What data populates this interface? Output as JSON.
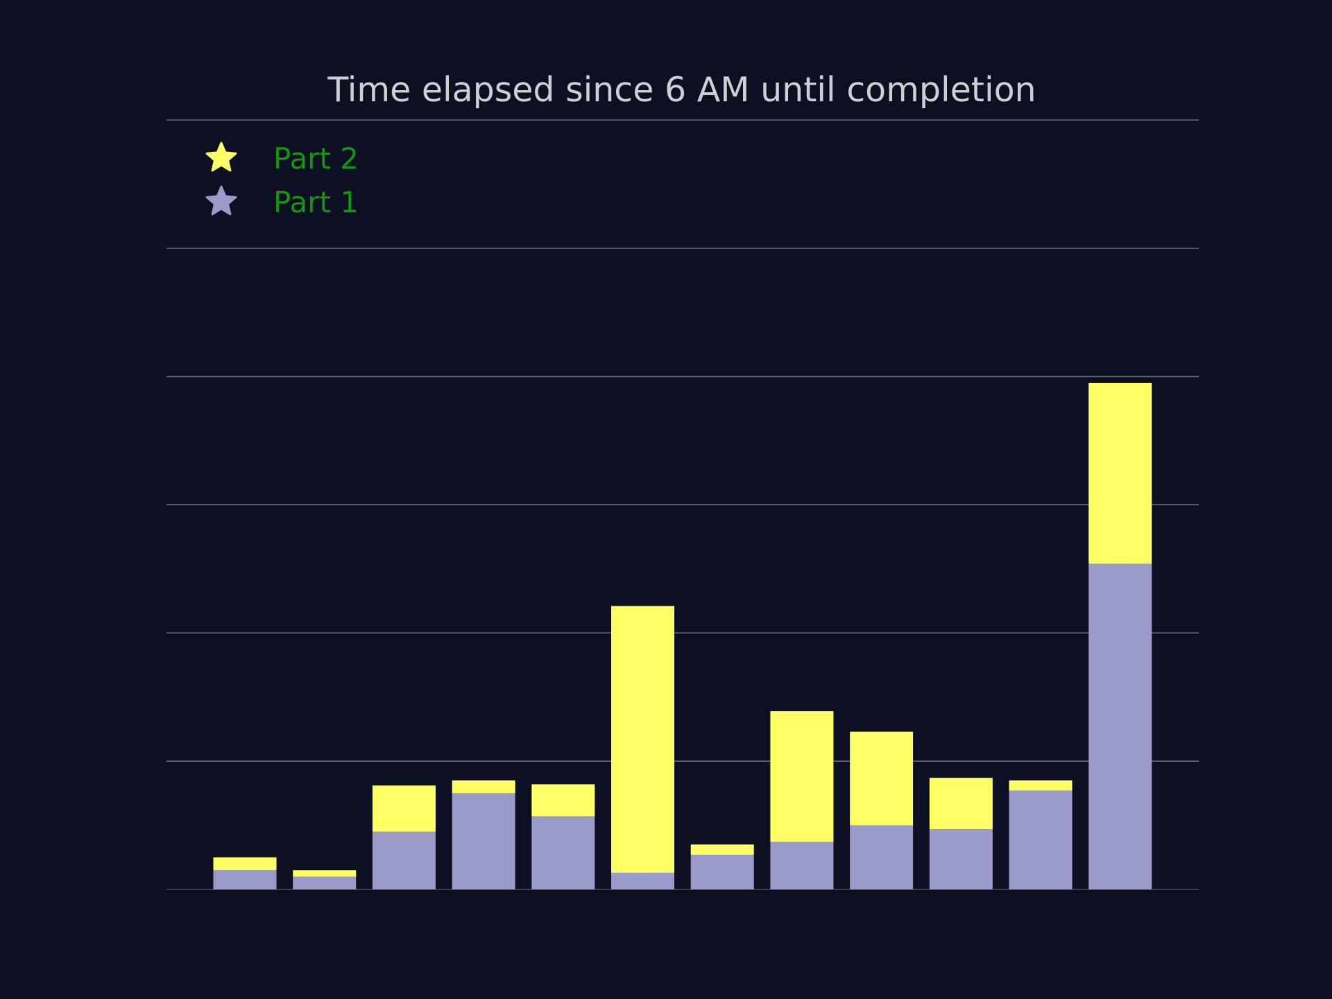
{
  "chart_data": {
    "type": "bar",
    "stacked": true,
    "title": "Time elapsed since 6 AM until completion",
    "xlabel": "",
    "ylabel": "",
    "categories": [
      "",
      "",
      "",
      "",
      "",
      "",
      "",
      "",
      "",
      "",
      "",
      ""
    ],
    "ylim": [
      0,
      6
    ],
    "yticks": [
      0,
      1,
      2,
      3,
      4,
      5,
      6
    ],
    "grid": true,
    "legend": {
      "placement": "top-left",
      "marker": "star-icon"
    },
    "series": [
      {
        "name": "Part 1",
        "color": "#9a9acb",
        "values": [
          0.15,
          0.1,
          0.45,
          0.75,
          0.57,
          0.13,
          0.27,
          0.37,
          0.5,
          0.47,
          0.77,
          2.54
        ]
      },
      {
        "name": "Part 2",
        "color": "#ffff66",
        "values": [
          0.1,
          0.05,
          0.36,
          0.1,
          0.25,
          2.08,
          0.08,
          1.02,
          0.73,
          0.4,
          0.08,
          1.41
        ]
      }
    ],
    "legend_order": [
      1,
      0
    ],
    "colors": {
      "background": "#0d0f22",
      "grid": "#6b6c7a",
      "title": "#cfcfd6",
      "legend_text": "#14960f"
    }
  }
}
